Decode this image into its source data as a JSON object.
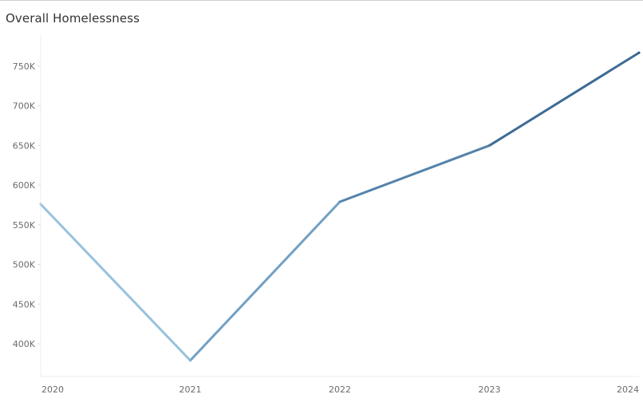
{
  "chart_data": {
    "type": "line",
    "title": "Overall Homelessness",
    "xlabel": "",
    "ylabel": "",
    "categories": [
      "2020",
      "2021",
      "2022",
      "2023",
      "2024"
    ],
    "series": [
      {
        "values": [
          576000,
          379000,
          579000,
          650000,
          767000
        ],
        "colors": [
          "#a8d0e6",
          "#85b4d3",
          "#5e8cb3",
          "#4a7aa3",
          "#2f5b86"
        ]
      }
    ],
    "y_ticks": [
      400000,
      450000,
      500000,
      550000,
      600000,
      650000,
      700000,
      750000
    ],
    "y_tick_labels": [
      "400K",
      "450K",
      "500K",
      "550K",
      "600K",
      "650K",
      "700K",
      "750K"
    ],
    "ylim": [
      340000,
      775000
    ],
    "grid": false,
    "legend": "none",
    "colors": {
      "title": "#333333",
      "tick_label": "#6b6b6b",
      "axis": "#ececec"
    }
  }
}
